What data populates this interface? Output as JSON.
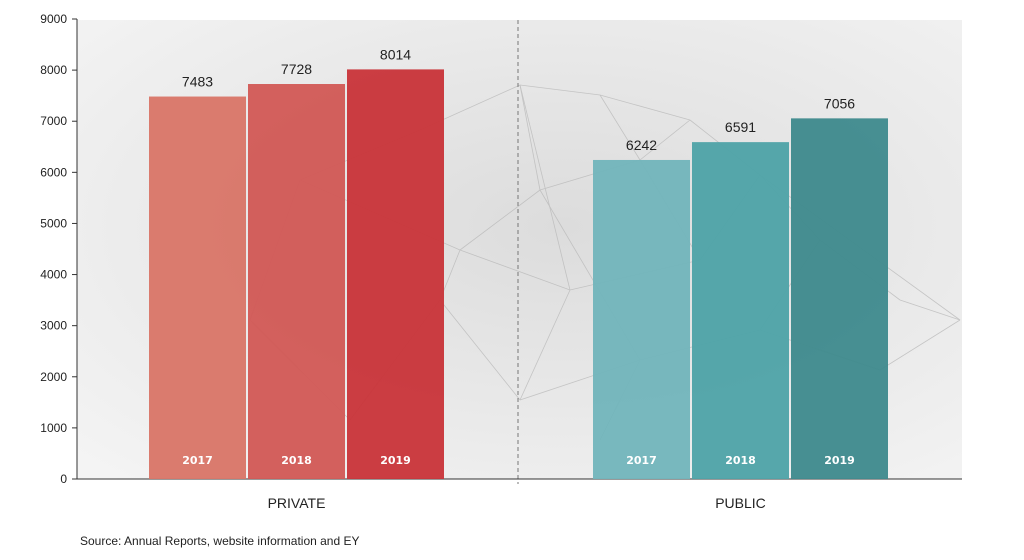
{
  "chart_data": {
    "type": "bar",
    "groups": [
      {
        "name": "PRIVATE",
        "bars": [
          {
            "label": "2017",
            "value": 7483,
            "color": "#d87668"
          },
          {
            "label": "2018",
            "value": 7728,
            "color": "#d15a56"
          },
          {
            "label": "2019",
            "value": 8014,
            "color": "#c9353a"
          }
        ]
      },
      {
        "name": "PUBLIC",
        "bars": [
          {
            "label": "2017",
            "value": 6242,
            "color": "#72b5bb"
          },
          {
            "label": "2018",
            "value": 6591,
            "color": "#4fa3a8"
          },
          {
            "label": "2019",
            "value": 7056,
            "color": "#3f8a8e"
          }
        ]
      }
    ],
    "ylim": [
      0,
      9000
    ],
    "yticks": [
      0,
      1000,
      2000,
      3000,
      4000,
      5000,
      6000,
      7000,
      8000,
      9000
    ],
    "xlabel": "",
    "ylabel": "",
    "grid": false,
    "group_divider": "dashed vertical line"
  },
  "source_note": "Source: Annual Reports, website information and EY"
}
